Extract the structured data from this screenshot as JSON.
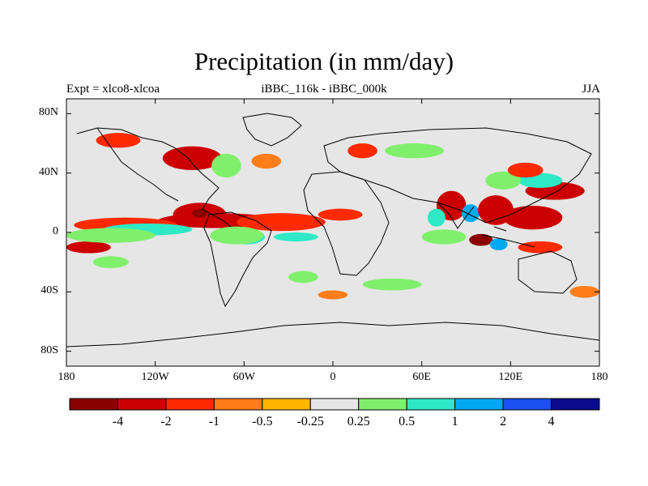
{
  "map": {
    "title": "Precipitation (in mm/day)",
    "left_string": "Expt = xlco8-xlcoa",
    "center_string": "iBBC_116k - iBBC_000k",
    "right_string": "JJA",
    "projection": "cylindrical equidistant",
    "lat_range": [
      -90,
      90
    ],
    "lon_range": [
      -180,
      180
    ],
    "lat_labels": [
      {
        "value": 80,
        "text": "80N"
      },
      {
        "value": 40,
        "text": "40N"
      },
      {
        "value": 0,
        "text": "0"
      },
      {
        "value": -40,
        "text": "40S"
      },
      {
        "value": -80,
        "text": "80S"
      }
    ],
    "lon_labels": [
      {
        "value": -180,
        "text": "180"
      },
      {
        "value": -120,
        "text": "120W"
      },
      {
        "value": -60,
        "text": "60W"
      },
      {
        "value": 0,
        "text": "0"
      },
      {
        "value": 60,
        "text": "60E"
      },
      {
        "value": 120,
        "text": "120E"
      },
      {
        "value": 180,
        "text": "180"
      }
    ],
    "background_color": "#e6e6e6"
  },
  "colorbar": {
    "colors": [
      "#8b0000",
      "#cc0000",
      "#ff2a00",
      "#ff7d1a",
      "#ffb400",
      "#e6e6e6",
      "#80f06c",
      "#2ee8c6",
      "#00aaf0",
      "#1a4ff0",
      "#0a0a8c"
    ],
    "labels": [
      "-4",
      "-2",
      "-1",
      "-0.5",
      "-0.25",
      "0.25",
      "0.5",
      "1",
      "2",
      "4"
    ]
  },
  "features": [
    {
      "name": "itcz-atlantic-pacific",
      "level": -2,
      "lon": -78,
      "lat": 8,
      "rx": 40,
      "ry": 5
    },
    {
      "name": "itcz-atlantic-east",
      "level": -1,
      "lon": -35,
      "lat": 7,
      "rx": 30,
      "ry": 6
    },
    {
      "name": "caribbean",
      "level": -2,
      "lon": -90,
      "lat": 12,
      "rx": 18,
      "ry": 8
    },
    {
      "name": "central-america",
      "level": -4,
      "lon": -90,
      "lat": 13,
      "rx": 5,
      "ry": 3
    },
    {
      "name": "east-pacific-west",
      "level": -1,
      "lon": -140,
      "lat": 5,
      "rx": 35,
      "ry": 5
    },
    {
      "name": "west-pacific",
      "level": -2,
      "lon": -165,
      "lat": -10,
      "rx": 15,
      "ry": 4
    },
    {
      "name": "eq-pacific-wet",
      "level": 1,
      "lon": -125,
      "lat": 2,
      "rx": 30,
      "ry": 4
    },
    {
      "name": "eq-pacific-wet2",
      "level": 0.5,
      "lon": -150,
      "lat": -2,
      "rx": 30,
      "ry": 5
    },
    {
      "name": "south-pacific-spcz",
      "level": 0.5,
      "lon": -150,
      "lat": -20,
      "rx": 12,
      "ry": 4
    },
    {
      "name": "amazon-wet",
      "level": 1,
      "lon": -58,
      "lat": -3,
      "rx": 12,
      "ry": 5
    },
    {
      "name": "amazon-wet2",
      "level": 0.5,
      "lon": -65,
      "lat": -2,
      "rx": 18,
      "ry": 6
    },
    {
      "name": "atlantic-sh-wet",
      "level": 1,
      "lon": -25,
      "lat": -3,
      "rx": 15,
      "ry": 3
    },
    {
      "name": "north-america-dry",
      "level": -2,
      "lon": -95,
      "lat": 50,
      "rx": 20,
      "ry": 8
    },
    {
      "name": "alaska-dry",
      "level": -1,
      "lon": -145,
      "lat": 62,
      "rx": 15,
      "ry": 5
    },
    {
      "name": "us-east-wet",
      "level": 0.5,
      "lon": -72,
      "lat": 45,
      "rx": 10,
      "ry": 8
    },
    {
      "name": "atlantic-north",
      "level": -0.5,
      "lon": -45,
      "lat": 48,
      "rx": 10,
      "ry": 5
    },
    {
      "name": "west-africa",
      "level": -1,
      "lon": 5,
      "lat": 12,
      "rx": 15,
      "ry": 4
    },
    {
      "name": "europe-dry",
      "level": -1,
      "lon": 20,
      "lat": 55,
      "rx": 10,
      "ry": 5
    },
    {
      "name": "russia-wet",
      "level": 0.5,
      "lon": 55,
      "lat": 55,
      "rx": 20,
      "ry": 5
    },
    {
      "name": "india-dry",
      "level": -2,
      "lon": 80,
      "lat": 18,
      "rx": 10,
      "ry": 10
    },
    {
      "name": "india-wet",
      "level": 1,
      "lon": 70,
      "lat": 10,
      "rx": 6,
      "ry": 6
    },
    {
      "name": "bay-bengal-wet",
      "level": 2,
      "lon": 93,
      "lat": 13,
      "rx": 6,
      "ry": 6
    },
    {
      "name": "se-asia-dry",
      "level": -2,
      "lon": 110,
      "lat": 15,
      "rx": 12,
      "ry": 10
    },
    {
      "name": "indonesia-dry",
      "level": -4,
      "lon": 100,
      "lat": -5,
      "rx": 8,
      "ry": 4
    },
    {
      "name": "indian-ocean-wet",
      "level": 0.5,
      "lon": 75,
      "lat": -3,
      "rx": 15,
      "ry": 5
    },
    {
      "name": "maritime-wet",
      "level": 2,
      "lon": 112,
      "lat": -8,
      "rx": 6,
      "ry": 4
    },
    {
      "name": "west-pacific-dry",
      "level": -2,
      "lon": 135,
      "lat": 10,
      "rx": 20,
      "ry": 8
    },
    {
      "name": "nw-pacific-dry",
      "level": -2,
      "lon": 150,
      "lat": 28,
      "rx": 20,
      "ry": 6
    },
    {
      "name": "east-asia-wet",
      "level": 1,
      "lon": 140,
      "lat": 35,
      "rx": 15,
      "ry": 5
    },
    {
      "name": "china-wet",
      "level": 0.5,
      "lon": 115,
      "lat": 35,
      "rx": 12,
      "ry": 6
    },
    {
      "name": "east-asia-dry",
      "level": -1,
      "lon": 130,
      "lat": 42,
      "rx": 12,
      "ry": 5
    },
    {
      "name": "australia-north",
      "level": -1,
      "lon": 140,
      "lat": -10,
      "rx": 15,
      "ry": 4
    },
    {
      "name": "south-indian",
      "level": 0.5,
      "lon": 40,
      "lat": -35,
      "rx": 20,
      "ry": 4
    },
    {
      "name": "south-atlantic",
      "level": 0.5,
      "lon": -20,
      "lat": -30,
      "rx": 10,
      "ry": 4
    },
    {
      "name": "southern-ocean",
      "level": -0.5,
      "lon": 0,
      "lat": -42,
      "rx": 10,
      "ry": 3
    },
    {
      "name": "sw-pacific",
      "level": -0.5,
      "lon": 170,
      "lat": -40,
      "rx": 10,
      "ry": 4
    }
  ]
}
